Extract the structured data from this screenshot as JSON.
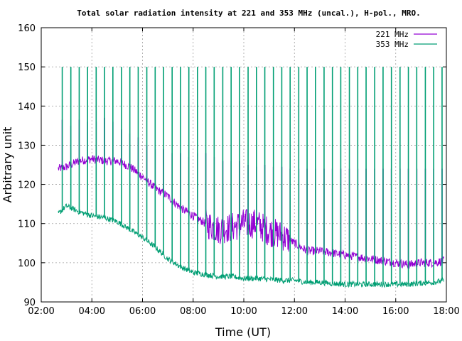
{
  "chart_data": {
    "type": "line",
    "title": "Total solar radiation intensity at 221 and 353 MHz (uncal.), H-pol., MRO.",
    "xlabel": "Time (UT)",
    "ylabel": "Arbitrary unit",
    "x_unit": "hours UT",
    "xlim": [
      2.0,
      18.0
    ],
    "ylim": [
      90,
      160
    ],
    "x_tick_labels": [
      "02:00",
      "04:00",
      "06:00",
      "08:00",
      "10:00",
      "12:00",
      "14:00",
      "16:00",
      "18:00"
    ],
    "y_tick_labels": [
      "90",
      "100",
      "110",
      "120",
      "130",
      "140",
      "150",
      "160"
    ],
    "grid": true,
    "legend_position": "top-right",
    "series": [
      {
        "name": "221 MHz",
        "color": "#9400d3",
        "x": [
          2.67,
          3.0,
          3.5,
          4.0,
          4.5,
          5.0,
          5.5,
          6.0,
          6.5,
          7.0,
          7.5,
          8.0,
          8.5,
          9.0,
          9.5,
          10.0,
          10.5,
          11.0,
          11.5,
          12.0,
          12.5,
          13.0,
          13.5,
          14.0,
          14.5,
          15.0,
          15.5,
          16.0,
          16.5,
          17.0,
          17.5,
          17.9
        ],
        "values": [
          124,
          124.5,
          126,
          126.5,
          126,
          126,
          124.5,
          122,
          119,
          117,
          114,
          112,
          110,
          108.5,
          109,
          110,
          110,
          108,
          107,
          105,
          103,
          103,
          102.5,
          102,
          101.5,
          101,
          100.5,
          100,
          99.5,
          100,
          100,
          100.5
        ]
      },
      {
        "name": "353 MHz",
        "color": "#009e73",
        "x": [
          2.67,
          3.0,
          3.5,
          4.0,
          4.5,
          5.0,
          5.5,
          6.0,
          6.5,
          7.0,
          7.5,
          8.0,
          8.5,
          9.0,
          9.5,
          10.0,
          10.5,
          11.0,
          11.5,
          12.0,
          12.5,
          13.0,
          13.5,
          14.0,
          14.5,
          15.0,
          15.5,
          16.0,
          16.5,
          17.0,
          17.5,
          17.9
        ],
        "values": [
          112.5,
          114.5,
          113,
          112,
          111.5,
          110.5,
          108.5,
          106.5,
          104,
          101,
          99,
          97.5,
          97,
          96.5,
          96.5,
          96,
          96,
          95.8,
          95.5,
          95.5,
          95,
          95,
          94.7,
          94.5,
          94.5,
          94.5,
          94.5,
          94.5,
          94.5,
          94.8,
          95,
          95.5
        ]
      }
    ],
    "spike_times": [
      2.83,
      3.17,
      3.5,
      3.83,
      4.17,
      4.5,
      4.83,
      5.17,
      5.5,
      5.83,
      6.17,
      6.5,
      6.83,
      7.17,
      7.5,
      7.83,
      8.17,
      8.5,
      8.83,
      9.17,
      9.5,
      9.83,
      10.17,
      10.5,
      10.83,
      11.17,
      11.5,
      11.83,
      12.17,
      12.5,
      12.83,
      13.17,
      13.5,
      13.83,
      14.17,
      14.5,
      14.83,
      15.17,
      15.5,
      15.83,
      16.17,
      16.5,
      16.83,
      17.17,
      17.5,
      17.83
    ],
    "spike_peak_221": [
      136.5,
      135,
      136.5,
      136,
      136,
      137,
      136,
      134,
      133,
      132,
      130,
      129,
      129,
      128,
      128,
      127,
      128,
      128,
      127,
      126,
      126,
      126,
      125,
      124.5,
      125,
      124.5,
      124.5,
      124,
      124,
      124,
      124,
      124,
      124,
      124,
      124,
      124,
      124,
      124,
      124,
      124,
      124,
      124,
      124,
      124,
      124,
      124
    ],
    "spike_peak_353": 150
  }
}
